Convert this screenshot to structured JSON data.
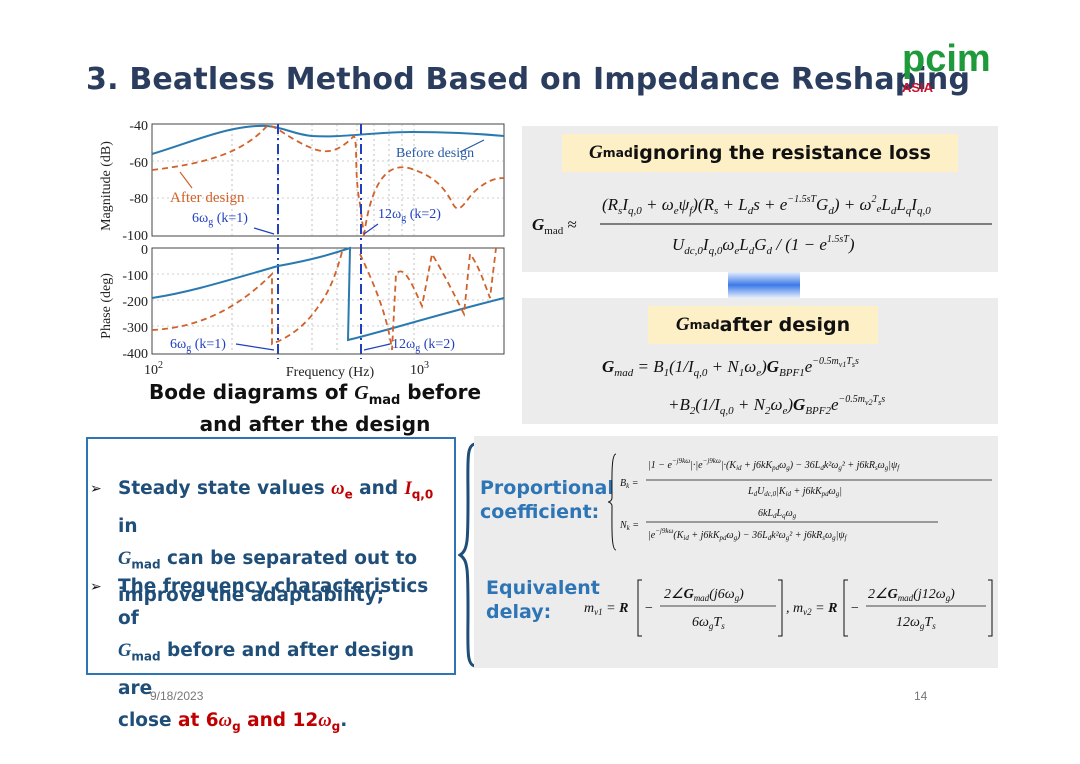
{
  "slide": {
    "title": "3. Beatless Method Based on Impedance Reshaping",
    "logo_text": "pcim",
    "logo_sub": "ASIA",
    "date": "9/18/2023",
    "page": "14"
  },
  "bode": {
    "ylabel_mag": "Magnitude (dB)",
    "ylabel_phase": "Phase (deg)",
    "xlabel": "Frequency (Hz)",
    "mag_ticks": [
      "-40",
      "-60",
      "-80",
      "-100"
    ],
    "phase_ticks": [
      "0",
      "-100",
      "-200",
      "-300",
      "-400"
    ],
    "x_tick_1": "10",
    "x_tick_1_exp": "2",
    "x_tick_2": "10",
    "x_tick_2_exp": "3",
    "legend_before": "Before design",
    "legend_after": "After design",
    "mark_6": "6ω",
    "mark_6_sub": "g",
    "mark_6_k": "(k=1)",
    "mark_12": "12ω",
    "mark_12_sub": "g",
    "mark_12_k": "(k=2)",
    "caption_a": "Bode diagrams of ",
    "caption_g": "G",
    "caption_sub": "mad",
    "caption_b": " before",
    "caption_c": "and after the design",
    "colors": {
      "before": "#2a7ab0",
      "after": "#d0622a",
      "marker": "#1f3fbf"
    }
  },
  "eq_panel_1": {
    "header_g": "G",
    "header_sub": "mad",
    "header_text": " ignoring the resistance loss"
  },
  "eq_panel_2": {
    "header_g": "G",
    "header_sub": "mad",
    "header_text": " after design"
  },
  "bullets": {
    "b1_a": "Steady state values ",
    "b1_we": "ω",
    "b1_we_sub": "e",
    "b1_and": " and ",
    "b1_iq": "I",
    "b1_iq_sub": "q,0",
    "b1_in": " in",
    "b1_g": "G",
    "b1_g_sub": "mad",
    "b1_b": " can be separated out to",
    "b1_c": "improve the adaptability;",
    "b2_a": "The frequency characteristics of",
    "b2_g": "G",
    "b2_g_sub": "mad",
    "b2_b": " before and after design are",
    "b2_c": "close ",
    "b2_at": "at 6",
    "b2_w1": "ω",
    "b2_w1_sub": "g",
    "b2_and": " and 12",
    "b2_w2": "ω",
    "b2_w2_sub": "g",
    "b2_end": "."
  },
  "right_panel": {
    "prop_label_1": "Proportional",
    "prop_label_2": "coefficient:",
    "delay_label_1": "Equivalent",
    "delay_label_2": "delay:"
  }
}
